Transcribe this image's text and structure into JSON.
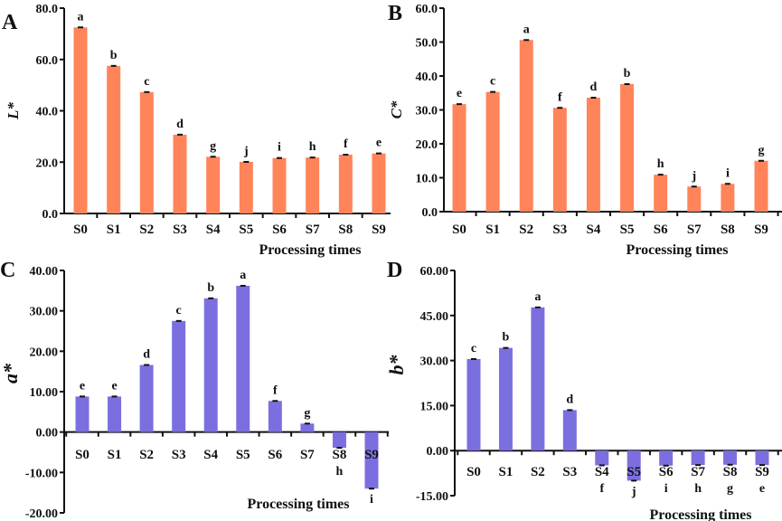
{
  "chart_data": [
    {
      "type": "bar",
      "panel_label": "A",
      "title": "",
      "xlabel": "Processing times",
      "ylabel": "L*",
      "categories": [
        "S0",
        "S1",
        "S2",
        "S3",
        "S4",
        "S5",
        "S6",
        "S7",
        "S8",
        "S9"
      ],
      "values": [
        72.5,
        57.5,
        47.3,
        30.7,
        22.1,
        20.1,
        21.6,
        21.8,
        22.9,
        23.4
      ],
      "significance_letters": [
        "a",
        "b",
        "c",
        "d",
        "g",
        "j",
        "i",
        "h",
        "f",
        "e"
      ],
      "ylim": [
        0,
        80
      ],
      "yticks": [
        "0.0",
        "20.0",
        "40.0",
        "60.0",
        "80.0"
      ],
      "ytick_values": [
        0,
        20,
        40,
        60,
        80
      ],
      "color": "#FF845A",
      "error_bars": true,
      "grid": false
    },
    {
      "type": "bar",
      "panel_label": "B",
      "title": "",
      "xlabel": "Processing times",
      "ylabel": "C*",
      "categories": [
        "S0",
        "S1",
        "S2",
        "S3",
        "S4",
        "S5",
        "S6",
        "S7",
        "S8",
        "S9"
      ],
      "values": [
        31.7,
        35.3,
        50.6,
        30.6,
        33.6,
        37.6,
        10.9,
        7.4,
        8.2,
        15.0
      ],
      "significance_letters": [
        "e",
        "c",
        "a",
        "f",
        "d",
        "b",
        "h",
        "j",
        "i",
        "g"
      ],
      "ylim": [
        0,
        60
      ],
      "yticks": [
        "0.0",
        "10.0",
        "20.0",
        "30.0",
        "40.0",
        "50.0",
        "60.0"
      ],
      "ytick_values": [
        0,
        10,
        20,
        30,
        40,
        50,
        60
      ],
      "color": "#FF845A",
      "error_bars": true,
      "grid": false
    },
    {
      "type": "bar",
      "panel_label": "C",
      "title": "",
      "xlabel": "Processing times",
      "ylabel": "a*",
      "categories": [
        "S0",
        "S1",
        "S2",
        "S3",
        "S4",
        "S5",
        "S6",
        "S7",
        "S8",
        "S9"
      ],
      "values": [
        8.8,
        8.8,
        16.6,
        27.5,
        33.1,
        36.2,
        7.7,
        2.1,
        -3.9,
        -14.0
      ],
      "significance_letters": [
        "e",
        "e",
        "d",
        "c",
        "b",
        "a",
        "f",
        "g",
        "h",
        "i"
      ],
      "ylim": [
        -20,
        40
      ],
      "yticks": [
        "-20.00",
        "-10.00",
        "0.00",
        "10.00",
        "20.00",
        "30.00",
        "40.00"
      ],
      "ytick_values": [
        -20,
        -10,
        0,
        10,
        20,
        30,
        40
      ],
      "color": "#7B6FE0",
      "error_bars": true,
      "grid": false
    },
    {
      "type": "bar",
      "panel_label": "D",
      "title": "",
      "xlabel": "Processing times",
      "ylabel": "b*",
      "categories": [
        "S0",
        "S1",
        "S2",
        "S3",
        "S4",
        "S5",
        "S6",
        "S7",
        "S8",
        "S9"
      ],
      "values": [
        30.5,
        34.2,
        47.7,
        13.5,
        -4.9,
        -10.0,
        -5.0,
        -4.8,
        -4.7,
        -4.8
      ],
      "significance_letters": [
        "c",
        "b",
        "a",
        "d",
        "f",
        "j",
        "i",
        "h",
        "g",
        "e"
      ],
      "ylim": [
        -15,
        60
      ],
      "yticks": [
        "-15.00",
        "0.00",
        "15.00",
        "30.00",
        "45.00",
        "60.00"
      ],
      "ytick_values": [
        -15,
        0,
        15,
        30,
        45,
        60
      ],
      "color": "#7B6FE0",
      "error_bars": true,
      "grid": false
    }
  ]
}
